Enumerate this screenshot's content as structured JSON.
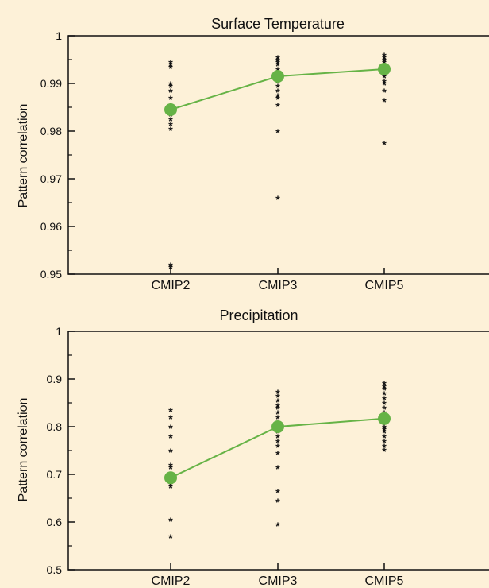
{
  "chart_data": [
    {
      "type": "scatter",
      "title": "Surface Temperature",
      "ylabel": "Pattern correlation",
      "xlabel": "",
      "categories": [
        "CMIP2",
        "CMIP3",
        "CMIP5"
      ],
      "ylim": [
        0.95,
        1
      ],
      "yticks": [
        0.95,
        0.96,
        0.97,
        0.98,
        0.99,
        1
      ],
      "ytick_labels": [
        "0.95",
        "0.96",
        "0.97",
        "0.98",
        "0.99",
        "1"
      ],
      "grid": false,
      "models": [
        [
          0.9945,
          0.994,
          0.9935,
          0.99,
          0.9895,
          0.9885,
          0.987,
          0.9855,
          0.9845,
          0.9835,
          0.9825,
          0.9815,
          0.9805,
          0.952,
          0.9515
        ],
        [
          0.9955,
          0.995,
          0.9945,
          0.994,
          0.993,
          0.9925,
          0.992,
          0.9915,
          0.9905,
          0.9895,
          0.9885,
          0.9875,
          0.987,
          0.9855,
          0.98,
          0.966
        ],
        [
          0.996,
          0.9955,
          0.995,
          0.9945,
          0.994,
          0.9935,
          0.993,
          0.9925,
          0.992,
          0.9915,
          0.9905,
          0.99,
          0.9885,
          0.9865,
          0.9775
        ]
      ],
      "mean": [
        0.9845,
        0.9915,
        0.993
      ],
      "colors": {
        "mean": "#66b346",
        "models": "#111111"
      }
    },
    {
      "type": "scatter",
      "title": "Precipitation",
      "ylabel": "Pattern correlation",
      "xlabel": "",
      "categories": [
        "CMIP2",
        "CMIP3",
        "CMIP5"
      ],
      "ylim": [
        0.5,
        1
      ],
      "yticks": [
        0.5,
        0.6,
        0.7,
        0.8,
        0.9,
        1
      ],
      "ytick_labels": [
        "0.5",
        "0.6",
        "0.7",
        "0.8",
        "0.9",
        "1"
      ],
      "grid": false,
      "models": [
        [
          0.835,
          0.82,
          0.8,
          0.78,
          0.75,
          0.72,
          0.715,
          0.69,
          0.68,
          0.675,
          0.605,
          0.57
        ],
        [
          0.873,
          0.865,
          0.855,
          0.845,
          0.84,
          0.83,
          0.82,
          0.805,
          0.795,
          0.79,
          0.78,
          0.77,
          0.76,
          0.745,
          0.715,
          0.665,
          0.645,
          0.595
        ],
        [
          0.892,
          0.885,
          0.88,
          0.87,
          0.86,
          0.85,
          0.84,
          0.83,
          0.82,
          0.81,
          0.8,
          0.795,
          0.79,
          0.78,
          0.77,
          0.76,
          0.752
        ]
      ],
      "mean": [
        0.693,
        0.8,
        0.817
      ],
      "colors": {
        "mean": "#66b346",
        "models": "#111111"
      }
    }
  ]
}
